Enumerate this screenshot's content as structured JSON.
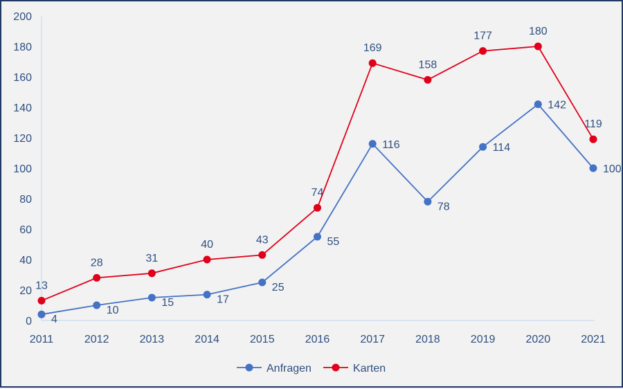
{
  "chart_data": {
    "type": "line",
    "categories": [
      "2011",
      "2012",
      "2013",
      "2014",
      "2015",
      "2016",
      "2017",
      "2018",
      "2019",
      "2020",
      "2021"
    ],
    "ylim": [
      0,
      200
    ],
    "yticks": [
      0,
      20,
      40,
      60,
      80,
      100,
      120,
      140,
      160,
      180,
      200
    ],
    "grid": false,
    "legend": "bottom",
    "series": [
      {
        "name": "Anfragen",
        "color": "#4472c4",
        "values": [
          4,
          10,
          15,
          17,
          25,
          55,
          116,
          78,
          114,
          142,
          100
        ]
      },
      {
        "name": "Karten",
        "color": "#e0001a",
        "values": [
          13,
          28,
          31,
          40,
          43,
          74,
          169,
          158,
          177,
          180,
          119
        ]
      }
    ]
  }
}
